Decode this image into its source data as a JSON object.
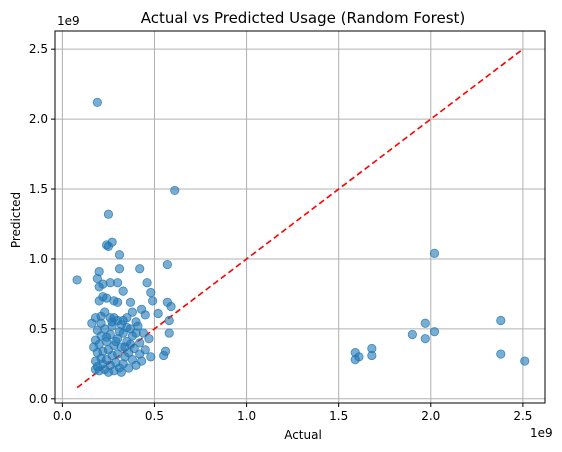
{
  "chart_data": {
    "type": "scatter",
    "title": "Actual vs Predicted Usage (Random Forest)",
    "xlabel": "Actual",
    "ylabel": "Predicted",
    "x_offset_label": "1e9",
    "y_offset_label": "1e9",
    "xlim": [
      -0.04,
      2.62
    ],
    "ylim": [
      -0.03,
      2.63
    ],
    "xticks": [
      0.0,
      0.5,
      1.0,
      1.5,
      2.0,
      2.5
    ],
    "xtick_labels": [
      "0.0",
      "0.5",
      "1.0",
      "1.5",
      "2.0",
      "2.5"
    ],
    "yticks": [
      0.0,
      0.5,
      1.0,
      1.5,
      2.0,
      2.5
    ],
    "ytick_labels": [
      "0.0",
      "0.5",
      "1.0",
      "1.5",
      "2.0",
      "2.5"
    ],
    "grid": true,
    "reference_line": {
      "from": [
        0.08,
        0.08
      ],
      "to": [
        2.5,
        2.5
      ],
      "color": "#ff0000",
      "style": "dashed"
    },
    "point_color": "#1f77b4",
    "points": [
      [
        0.19,
        2.12
      ],
      [
        0.61,
        1.49
      ],
      [
        0.25,
        1.32
      ],
      [
        0.27,
        1.12
      ],
      [
        0.24,
        1.1
      ],
      [
        0.25,
        1.09
      ],
      [
        0.31,
        1.03
      ],
      [
        2.02,
        1.04
      ],
      [
        0.57,
        0.96
      ],
      [
        0.42,
        0.93
      ],
      [
        0.31,
        0.93
      ],
      [
        0.2,
        0.91
      ],
      [
        0.08,
        0.85
      ],
      [
        0.19,
        0.86
      ],
      [
        0.3,
        0.83
      ],
      [
        0.46,
        0.83
      ],
      [
        0.22,
        0.82
      ],
      [
        0.26,
        0.83
      ],
      [
        0.2,
        0.8
      ],
      [
        0.33,
        0.77
      ],
      [
        0.48,
        0.76
      ],
      [
        0.22,
        0.73
      ],
      [
        0.24,
        0.72
      ],
      [
        0.2,
        0.7
      ],
      [
        0.28,
        0.7
      ],
      [
        0.3,
        0.69
      ],
      [
        0.37,
        0.69
      ],
      [
        0.57,
        0.69
      ],
      [
        0.59,
        0.66
      ],
      [
        0.49,
        0.7
      ],
      [
        0.43,
        0.64
      ],
      [
        0.38,
        0.62
      ],
      [
        0.23,
        0.62
      ],
      [
        0.45,
        0.6
      ],
      [
        0.52,
        0.61
      ],
      [
        0.26,
        0.58
      ],
      [
        0.35,
        0.58
      ],
      [
        0.21,
        0.59
      ],
      [
        0.18,
        0.58
      ],
      [
        0.58,
        0.56
      ],
      [
        0.3,
        0.56
      ],
      [
        0.4,
        0.55
      ],
      [
        0.16,
        0.54
      ],
      [
        0.27,
        0.55
      ],
      [
        0.32,
        0.53
      ],
      [
        0.41,
        0.52
      ],
      [
        0.37,
        0.5
      ],
      [
        0.23,
        0.5
      ],
      [
        0.19,
        0.49
      ],
      [
        0.44,
        0.47
      ],
      [
        0.58,
        0.47
      ],
      [
        0.33,
        0.47
      ],
      [
        0.26,
        0.46
      ],
      [
        0.21,
        0.45
      ],
      [
        0.38,
        0.45
      ],
      [
        0.47,
        0.43
      ],
      [
        0.3,
        0.43
      ],
      [
        0.18,
        0.42
      ],
      [
        0.24,
        0.41
      ],
      [
        0.35,
        0.41
      ],
      [
        0.42,
        0.4
      ],
      [
        0.2,
        0.39
      ],
      [
        0.28,
        0.38
      ],
      [
        0.32,
        0.37
      ],
      [
        0.17,
        0.37
      ],
      [
        0.39,
        0.36
      ],
      [
        0.45,
        0.35
      ],
      [
        0.25,
        0.35
      ],
      [
        0.22,
        0.34
      ],
      [
        0.36,
        0.33
      ],
      [
        0.19,
        0.33
      ],
      [
        0.3,
        0.32
      ],
      [
        0.42,
        0.32
      ],
      [
        0.27,
        0.31
      ],
      [
        0.34,
        0.3
      ],
      [
        0.48,
        0.3
      ],
      [
        0.21,
        0.29
      ],
      [
        0.24,
        0.28
      ],
      [
        0.38,
        0.28
      ],
      [
        0.18,
        0.27
      ],
      [
        0.29,
        0.26
      ],
      [
        0.33,
        0.25
      ],
      [
        0.22,
        0.25
      ],
      [
        0.26,
        0.24
      ],
      [
        0.4,
        0.24
      ],
      [
        0.19,
        0.23
      ],
      [
        0.31,
        0.22
      ],
      [
        0.23,
        0.21
      ],
      [
        0.28,
        0.2
      ],
      [
        0.36,
        0.22
      ],
      [
        0.2,
        0.2
      ],
      [
        0.25,
        0.19
      ],
      [
        0.32,
        0.19
      ],
      [
        0.18,
        0.21
      ],
      [
        0.55,
        0.31
      ],
      [
        0.56,
        0.34
      ],
      [
        0.43,
        0.27
      ],
      [
        0.34,
        0.37
      ],
      [
        0.29,
        0.41
      ],
      [
        0.37,
        0.39
      ],
      [
        0.24,
        0.44
      ],
      [
        0.4,
        0.47
      ],
      [
        0.31,
        0.48
      ],
      [
        0.35,
        0.51
      ],
      [
        0.27,
        0.52
      ],
      [
        0.21,
        0.54
      ],
      [
        0.33,
        0.56
      ],
      [
        0.28,
        0.58
      ],
      [
        1.59,
        0.33
      ],
      [
        1.59,
        0.28
      ],
      [
        1.61,
        0.3
      ],
      [
        1.68,
        0.36
      ],
      [
        1.68,
        0.31
      ],
      [
        1.9,
        0.46
      ],
      [
        1.97,
        0.54
      ],
      [
        1.97,
        0.43
      ],
      [
        2.02,
        0.48
      ],
      [
        2.38,
        0.56
      ],
      [
        2.38,
        0.32
      ],
      [
        2.51,
        0.27
      ]
    ]
  }
}
